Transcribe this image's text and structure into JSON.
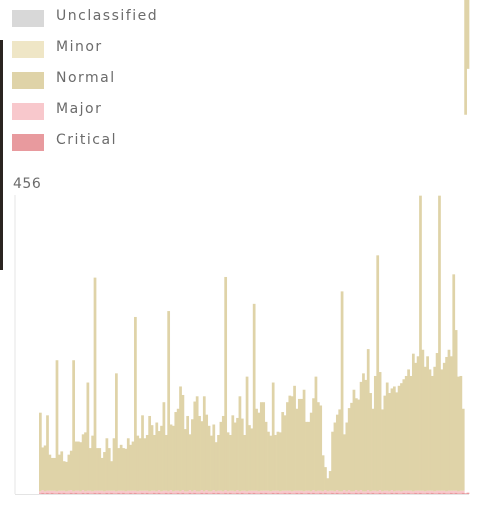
{
  "legend": {
    "items": [
      {
        "label": "Unclassified",
        "color": "#d8d8d8"
      },
      {
        "label": "Minor",
        "color": "#efe6c6"
      },
      {
        "label": "Normal",
        "color": "#dfd3a8"
      },
      {
        "label": "Major",
        "color": "#f8c8cc"
      },
      {
        "label": "Critical",
        "color": "#e89a9e"
      }
    ]
  },
  "chart_data": {
    "type": "bar",
    "stacked": true,
    "y_max_label": "456",
    "ylim": [
      0,
      456
    ],
    "series": [
      {
        "name": "Normal",
        "color": "#dfd3a8",
        "values": [
          120,
          65,
          70,
          115,
          55,
          50,
          50,
          200,
          55,
          60,
          45,
          45,
          55,
          60,
          200,
          75,
          75,
          75,
          85,
          90,
          165,
          65,
          85,
          325,
          65,
          65,
          50,
          60,
          80,
          65,
          45,
          80,
          180,
          65,
          70,
          65,
          65,
          80,
          70,
          75,
          265,
          85,
          80,
          115,
          80,
          85,
          115,
          100,
          85,
          105,
          90,
          100,
          135,
          85,
          275,
          100,
          100,
          120,
          125,
          160,
          145,
          95,
          115,
          85,
          110,
          135,
          145,
          115,
          105,
          145,
          115,
          100,
          85,
          100,
          75,
          85,
          105,
          115,
          325,
          90,
          85,
          115,
          105,
          110,
          145,
          110,
          85,
          175,
          100,
          95,
          285,
          125,
          120,
          135,
          135,
          105,
          90,
          85,
          165,
          85,
          90,
          90,
          120,
          115,
          135,
          145,
          145,
          160,
          125,
          140,
          140,
          155,
          105,
          105,
          120,
          140,
          175,
          135,
          130,
          55,
          35,
          20,
          30,
          90,
          105,
          115,
          125,
          305,
          85,
          105,
          125,
          135,
          155,
          140,
          140,
          165,
          180,
          170,
          215,
          150,
          125,
          175,
          360,
          180,
          125,
          145,
          165,
          150,
          155,
          160,
          150,
          160,
          165,
          170,
          175,
          185,
          175,
          210,
          195,
          205,
          450,
          215,
          190,
          205,
          185,
          175,
          190,
          210,
          450,
          185,
          195,
          205,
          215,
          205,
          330,
          245,
          175,
          175,
          125,
          175,
          105
        ]
      },
      {
        "name": "Major",
        "color": "#f8c8cc",
        "values": [
          3,
          4,
          3,
          3,
          4,
          3,
          4,
          3,
          3,
          4,
          3,
          3,
          4,
          4,
          3,
          3,
          4,
          3,
          4,
          3,
          3,
          4,
          3,
          3,
          4,
          3,
          4,
          3,
          3,
          4,
          3,
          4,
          3,
          3,
          4,
          3,
          3,
          4,
          3,
          4,
          3,
          3,
          4,
          3,
          4,
          3,
          3,
          4,
          3,
          3,
          4,
          3,
          4,
          3,
          3,
          4,
          3,
          4,
          3,
          3,
          4,
          3,
          3,
          4,
          3,
          4,
          3,
          3,
          4,
          3,
          4,
          3,
          3,
          4,
          3,
          3,
          4,
          3,
          4,
          3,
          3,
          4,
          3,
          4,
          3,
          3,
          4,
          3,
          3,
          4,
          3,
          4,
          3,
          3,
          4,
          3,
          4,
          3,
          3,
          4,
          3,
          3,
          4,
          3,
          4,
          3,
          3,
          4,
          3,
          4,
          3,
          3,
          4,
          3,
          3,
          4,
          3,
          4,
          3,
          3,
          4,
          3,
          4,
          3,
          3,
          4,
          3,
          3,
          4,
          3,
          4,
          3,
          3,
          4,
          3,
          4,
          3,
          3,
          4,
          3,
          3,
          4,
          3,
          4,
          3,
          3,
          4,
          3,
          4,
          3,
          3,
          4,
          3,
          3,
          4,
          3,
          4,
          3,
          3,
          4,
          3,
          4,
          3,
          3,
          4,
          3,
          3,
          4,
          3,
          4,
          3,
          3,
          4,
          3,
          4,
          3,
          3,
          4,
          3
        ]
      },
      {
        "name": "Critical",
        "color": "#e89a9e",
        "values": [
          1,
          2,
          1,
          2,
          1,
          2,
          1,
          1,
          2,
          1,
          2,
          1,
          1,
          2,
          1,
          2,
          1,
          1,
          2,
          1,
          2,
          1,
          1,
          2,
          1,
          2,
          1,
          1,
          2,
          1,
          2,
          1,
          1,
          2,
          1,
          2,
          1,
          1,
          2,
          1,
          2,
          1,
          1,
          2,
          1,
          2,
          1,
          1,
          2,
          1,
          2,
          1,
          1,
          2,
          1,
          2,
          1,
          1,
          2,
          1,
          2,
          1,
          1,
          2,
          1,
          2,
          1,
          1,
          2,
          1,
          2,
          1,
          1,
          2,
          1,
          2,
          1,
          1,
          2,
          1,
          2,
          1,
          1,
          2,
          1,
          2,
          1,
          1,
          2,
          1,
          2,
          1,
          1,
          2,
          1,
          2,
          1,
          1,
          2,
          1,
          2,
          1,
          1,
          2,
          1,
          2,
          1,
          1,
          2,
          1,
          2,
          1,
          1,
          2,
          1,
          2,
          1,
          1,
          2,
          1,
          2,
          1,
          1,
          2,
          1,
          2,
          1,
          1,
          2,
          1,
          2,
          1,
          1,
          2,
          1,
          2,
          1,
          1,
          2,
          1,
          2,
          1,
          1,
          2,
          1,
          2,
          1,
          1,
          2,
          1,
          2,
          1,
          1,
          2,
          1,
          2,
          1,
          1,
          2,
          1,
          2,
          1,
          1,
          2,
          1,
          2,
          1,
          1,
          2,
          1,
          2,
          1,
          1,
          2,
          1,
          2,
          1,
          1,
          2,
          1,
          2,
          1
        ]
      }
    ],
    "grid": false,
    "legend_position": "top-left"
  }
}
